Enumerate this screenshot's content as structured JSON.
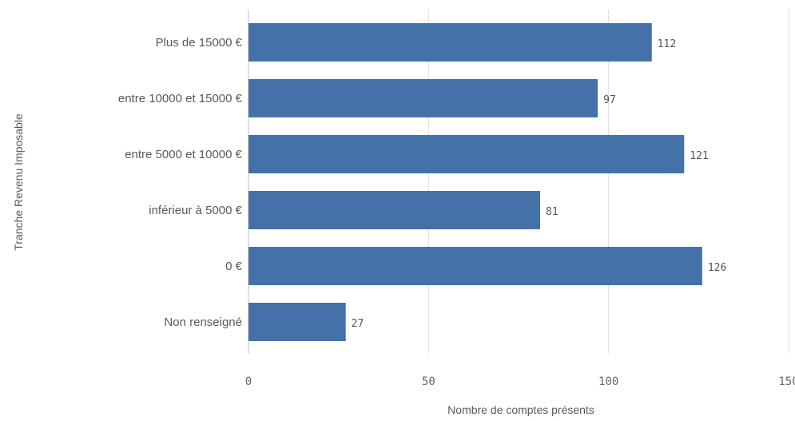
{
  "chart_data": {
    "type": "bar",
    "orientation": "horizontal",
    "categories": [
      "Plus de 15000 €",
      "entre 10000 et 15000 €",
      "entre 5000 et 10000 €",
      "inférieur à 5000 €",
      "0 €",
      "Non renseigné"
    ],
    "values": [
      112,
      97,
      121,
      81,
      126,
      27
    ],
    "xlabel": "Nombre de comptes présents",
    "ylabel": "Tranche Revenu Imposable",
    "xlim": [
      0,
      150
    ],
    "x_ticks": [
      0,
      50,
      100,
      150
    ],
    "grid": "vertical",
    "data_labels": true,
    "bar_color": "#4472a8"
  }
}
